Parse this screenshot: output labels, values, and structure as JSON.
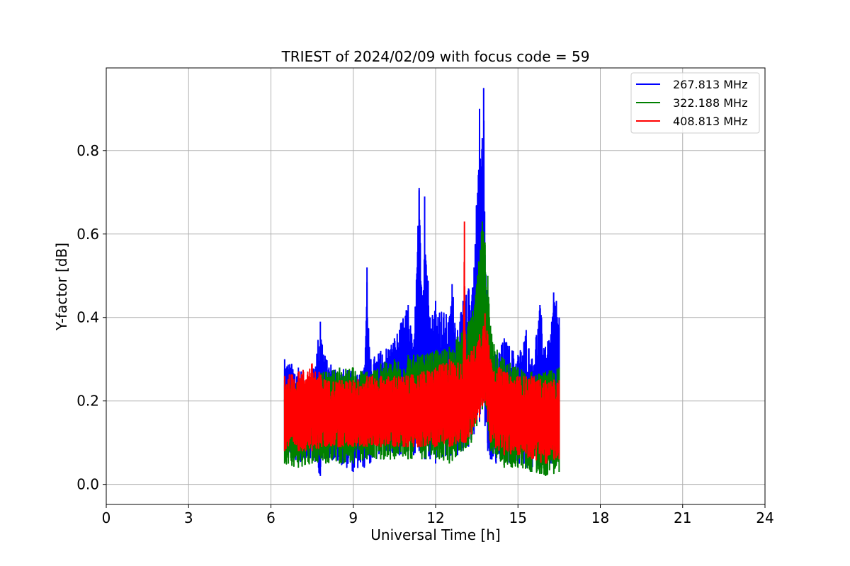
{
  "chart_data": {
    "type": "line",
    "title": "TRIEST of 2024/02/09 with focus code = 59",
    "xlabel": "Universal Time [h]",
    "ylabel": "Y-factor [dB]",
    "xlim": [
      0,
      24
    ],
    "ylim": [
      -0.048,
      0.998
    ],
    "x_ticks": [
      0,
      3,
      6,
      9,
      12,
      15,
      18,
      21,
      24
    ],
    "x_tick_labels": [
      "0",
      "3",
      "6",
      "9",
      "12",
      "15",
      "18",
      "21",
      "24"
    ],
    "y_ticks": [
      0.0,
      0.2,
      0.4,
      0.6,
      0.8
    ],
    "y_tick_labels": [
      "0.0",
      "0.2",
      "0.4",
      "0.6",
      "0.8"
    ],
    "grid": true,
    "legend_position": "top-right",
    "series": [
      {
        "name": "267.813 MHz",
        "color": "#0000ff",
        "envelope_x": [
          6.5,
          7.0,
          7.5,
          7.8,
          8.0,
          8.5,
          9.0,
          9.4,
          9.5,
          9.6,
          10.0,
          10.5,
          11.0,
          11.2,
          11.4,
          11.5,
          11.6,
          11.8,
          12.0,
          12.5,
          12.6,
          12.8,
          13.0,
          13.2,
          13.4,
          13.6,
          13.7,
          13.75,
          13.8,
          13.9,
          14.0,
          14.2,
          14.5,
          15.0,
          15.3,
          15.5,
          15.8,
          16.0,
          16.2,
          16.3,
          16.4,
          16.5
        ],
        "upper": [
          0.3,
          0.28,
          0.26,
          0.39,
          0.3,
          0.28,
          0.27,
          0.28,
          0.52,
          0.3,
          0.32,
          0.35,
          0.43,
          0.33,
          0.71,
          0.45,
          0.69,
          0.4,
          0.44,
          0.4,
          0.48,
          0.37,
          0.44,
          0.47,
          0.52,
          0.9,
          0.83,
          0.95,
          0.55,
          0.42,
          0.35,
          0.31,
          0.35,
          0.31,
          0.37,
          0.3,
          0.43,
          0.33,
          0.36,
          0.46,
          0.44,
          0.4
        ],
        "lower": [
          0.08,
          0.05,
          0.06,
          0.02,
          0.06,
          0.05,
          0.03,
          0.04,
          0.06,
          0.05,
          0.06,
          0.07,
          0.07,
          0.07,
          0.08,
          0.07,
          0.06,
          0.06,
          0.05,
          0.06,
          0.07,
          0.07,
          0.08,
          0.09,
          0.12,
          0.15,
          0.18,
          0.2,
          0.14,
          0.08,
          0.06,
          0.05,
          0.05,
          0.05,
          0.04,
          0.03,
          0.04,
          0.05,
          0.05,
          0.05,
          0.05,
          0.07
        ]
      },
      {
        "name": "322.188 MHz",
        "color": "#008000",
        "envelope_x": [
          6.5,
          7.0,
          7.5,
          8.0,
          8.5,
          9.0,
          9.5,
          10.0,
          10.5,
          11.0,
          11.5,
          12.0,
          12.5,
          13.0,
          13.3,
          13.5,
          13.7,
          13.8,
          13.9,
          14.0,
          14.5,
          15.0,
          15.5,
          16.0,
          16.5
        ],
        "upper": [
          0.25,
          0.25,
          0.26,
          0.27,
          0.28,
          0.28,
          0.27,
          0.29,
          0.3,
          0.31,
          0.31,
          0.32,
          0.33,
          0.37,
          0.4,
          0.48,
          0.63,
          0.58,
          0.5,
          0.38,
          0.3,
          0.28,
          0.27,
          0.27,
          0.28
        ],
        "lower": [
          0.05,
          0.04,
          0.05,
          0.05,
          0.05,
          0.05,
          0.06,
          0.06,
          0.06,
          0.06,
          0.06,
          0.06,
          0.05,
          0.08,
          0.1,
          0.14,
          0.18,
          0.2,
          0.15,
          0.08,
          0.04,
          0.04,
          0.03,
          0.02,
          0.03
        ]
      },
      {
        "name": "408.813 MHz",
        "color": "#ff0000",
        "envelope_x": [
          6.5,
          7.0,
          7.5,
          8.0,
          8.5,
          9.0,
          9.5,
          10.0,
          10.5,
          11.0,
          11.5,
          12.0,
          12.5,
          13.0,
          13.05,
          13.1,
          13.3,
          13.6,
          13.8,
          13.9,
          14.0,
          14.5,
          15.0,
          15.5,
          16.0,
          16.5
        ],
        "upper": [
          0.26,
          0.27,
          0.29,
          0.25,
          0.25,
          0.25,
          0.26,
          0.26,
          0.26,
          0.26,
          0.27,
          0.28,
          0.3,
          0.29,
          0.63,
          0.3,
          0.32,
          0.36,
          0.41,
          0.36,
          0.3,
          0.27,
          0.26,
          0.26,
          0.25,
          0.25
        ],
        "lower": [
          0.08,
          0.08,
          0.08,
          0.09,
          0.09,
          0.09,
          0.09,
          0.09,
          0.09,
          0.09,
          0.09,
          0.09,
          0.09,
          0.1,
          0.1,
          0.1,
          0.12,
          0.16,
          0.2,
          0.15,
          0.1,
          0.07,
          0.07,
          0.06,
          0.05,
          0.06
        ]
      }
    ]
  }
}
